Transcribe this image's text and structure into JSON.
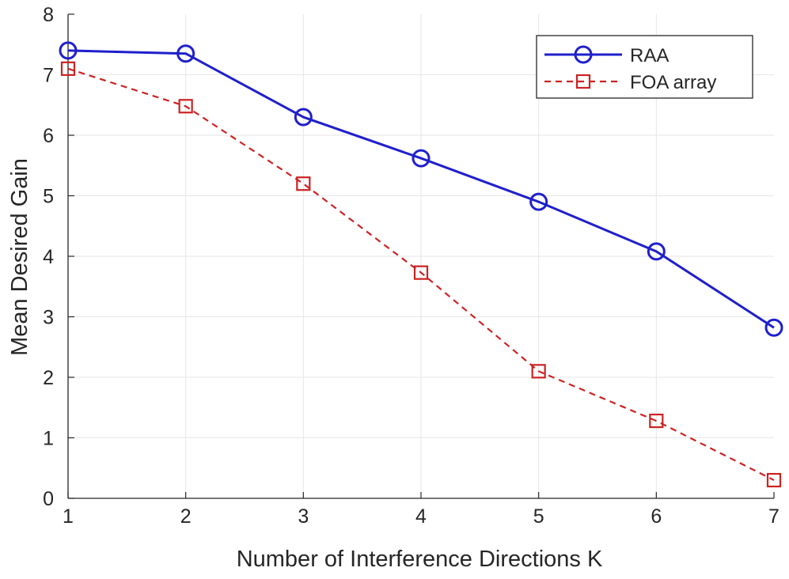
{
  "chart_data": {
    "type": "line",
    "title": "",
    "xlabel": "Number of Interference Directions K",
    "ylabel": "Mean Desired Gain",
    "x": [
      1,
      2,
      3,
      4,
      5,
      6,
      7
    ],
    "xlim": [
      1,
      7
    ],
    "ylim": [
      0,
      8
    ],
    "xticks": [
      "1",
      "2",
      "3",
      "4",
      "5",
      "6",
      "7"
    ],
    "yticks": [
      "0",
      "1",
      "2",
      "3",
      "4",
      "5",
      "6",
      "7",
      "8"
    ],
    "grid": true,
    "legend_position": "top-right",
    "series": [
      {
        "name": "RAA",
        "values": [
          7.4,
          7.35,
          6.3,
          5.62,
          4.9,
          4.08,
          2.82
        ],
        "color": "#1f1fcc",
        "line_style": "solid",
        "marker": "circle"
      },
      {
        "name": "FOA array",
        "values": [
          7.1,
          6.48,
          5.2,
          3.73,
          2.1,
          1.28,
          0.3
        ],
        "color": "#cc2222",
        "line_style": "dashed",
        "marker": "square"
      }
    ]
  }
}
